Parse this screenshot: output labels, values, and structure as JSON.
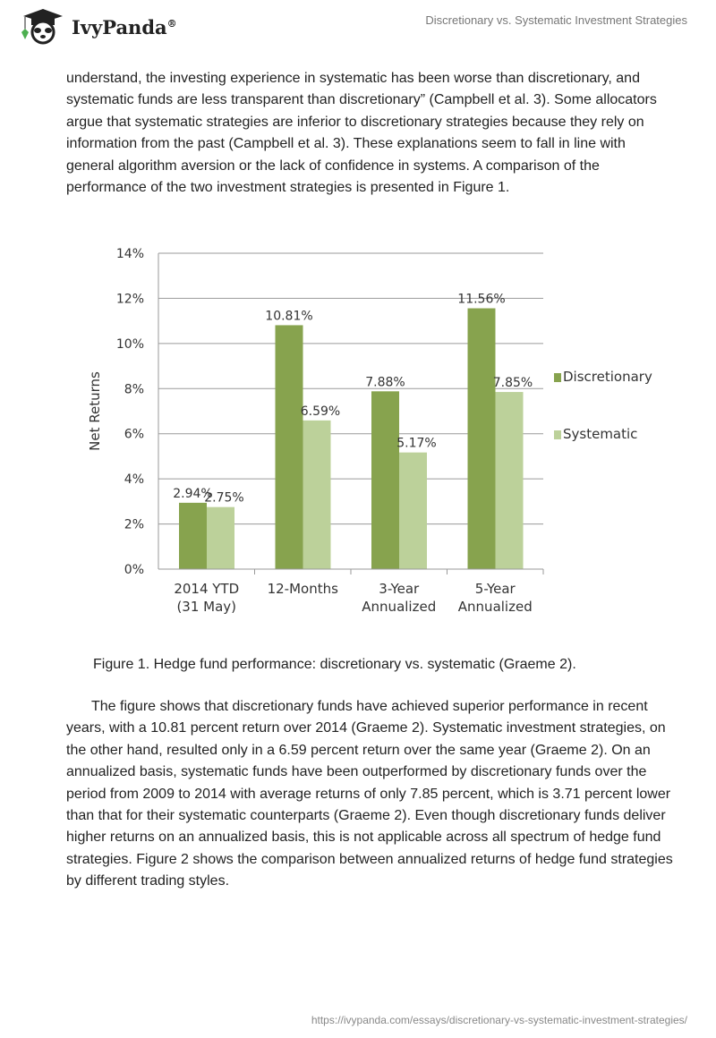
{
  "header": {
    "brand": "IvyPanda",
    "registered": "®",
    "doc_title": "Discretionary vs. Systematic Investment Strategies"
  },
  "body": {
    "paragraph1": "understand, the investing experience in systematic has been worse than discretionary, and systematic funds are less transparent than discretionary” (Campbell et al. 3). Some allocators argue that systematic strategies are inferior to discretionary strategies because they rely on information from the past (Campbell et al. 3). These explanations seem to fall in line with general algorithm aversion or the lack of confidence in systems. A comparison of the performance of the two investment strategies is presented in Figure 1.",
    "caption": "Figure 1. Hedge fund performance: discretionary vs. systematic (Graeme 2).",
    "paragraph2": "The figure shows that discretionary funds have achieved superior performance in recent years, with a 10.81 percent return over 2014 (Graeme 2). Systematic investment strategies, on the other hand, resulted only in a 6.59 percent return over the same year (Graeme 2). On an annualized basis, systematic funds have been outperformed by discretionary funds over the period from 2009 to 2014 with average returns of only 7.85 percent, which is 3.71 percent lower than that for their systematic counterparts (Graeme 2). Even though discretionary funds deliver higher returns on an annualized basis, this is not applicable across all spectrum of hedge fund strategies. Figure 2 shows the comparison between annualized returns of hedge fund strategies by different trading styles."
  },
  "footer": {
    "url": "https://ivypanda.com/essays/discretionary-vs-systematic-investment-strategies/"
  },
  "chart_data": {
    "type": "bar",
    "title": "",
    "xlabel": "",
    "ylabel": "Net Returns",
    "ylim": [
      0,
      14
    ],
    "yticks": [
      "0%",
      "2%",
      "4%",
      "6%",
      "8%",
      "10%",
      "12%",
      "14%"
    ],
    "grid": true,
    "legend": "right",
    "categories": [
      [
        "2014 YTD",
        "(31 May)"
      ],
      [
        "12-Months"
      ],
      [
        "3-Year",
        "Annualized"
      ],
      [
        "5-Year",
        "Annualized"
      ]
    ],
    "series": [
      {
        "name": "Discretionary",
        "color": "#87a34e",
        "values": [
          2.94,
          10.81,
          7.88,
          11.56
        ],
        "labels": [
          "2.94%",
          "10.81%",
          "7.88%",
          "11.56%"
        ]
      },
      {
        "name": "Systematic",
        "color": "#bcd19a",
        "values": [
          2.75,
          6.59,
          5.17,
          7.85
        ],
        "labels": [
          "2.75%",
          "6.59%",
          "5.17%",
          "7.85%"
        ]
      }
    ]
  }
}
